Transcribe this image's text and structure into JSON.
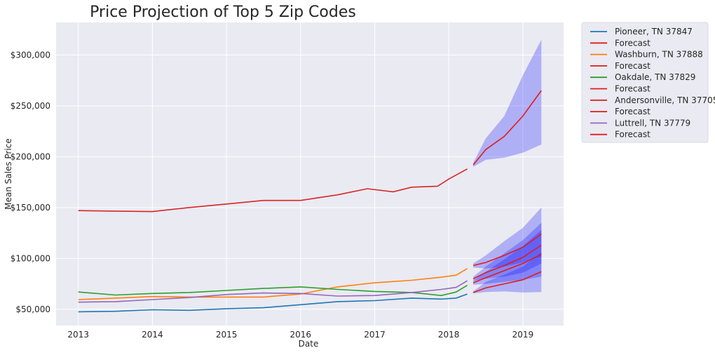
{
  "chart_data": {
    "type": "line",
    "title": "Price Projection of Top 5 Zip Codes",
    "xlabel": "Date",
    "ylabel": "Mean Sales Price",
    "xlim": [
      2012.7,
      2019.55
    ],
    "ylim": [
      34000,
      332000
    ],
    "x_ticks": [
      {
        "value": 2013,
        "label": "2013"
      },
      {
        "value": 2014,
        "label": "2014"
      },
      {
        "value": 2015,
        "label": "2015"
      },
      {
        "value": 2016,
        "label": "2016"
      },
      {
        "value": 2017,
        "label": "2017"
      },
      {
        "value": 2018,
        "label": "2018"
      },
      {
        "value": 2019,
        "label": "2019"
      }
    ],
    "y_ticks": [
      {
        "value": 50000,
        "label": "$50,000"
      },
      {
        "value": 100000,
        "label": "$100,000"
      },
      {
        "value": 150000,
        "label": "$150,000"
      },
      {
        "value": 200000,
        "label": "$200,000"
      },
      {
        "value": 250000,
        "label": "$250,000"
      },
      {
        "value": 300000,
        "label": "$300,000"
      }
    ],
    "grid": true,
    "legend_position": "outside-right",
    "colors": {
      "background": "#eaeaf2",
      "grid": "#ffffff",
      "forecast_line": "#e31a1c",
      "confidence_band": "#0000ff"
    },
    "legend": [
      {
        "label": "Pioneer, TN 37847",
        "color": "#1f77b4"
      },
      {
        "label": "Forecast",
        "color": "#e31a1c"
      },
      {
        "label": "Washburn, TN 37888",
        "color": "#ff7f0e"
      },
      {
        "label": "Forecast",
        "color": "#e31a1c"
      },
      {
        "label": "Oakdale, TN 37829",
        "color": "#2ca02c"
      },
      {
        "label": "Forecast",
        "color": "#e31a1c"
      },
      {
        "label": "Andersonville, TN 37705",
        "color": "#d62728"
      },
      {
        "label": "Forecast",
        "color": "#e31a1c"
      },
      {
        "label": "Luttrell, TN 37779",
        "color": "#9467bd"
      },
      {
        "label": "Forecast",
        "color": "#e31a1c"
      }
    ],
    "series": [
      {
        "name": "Pioneer, TN 37847",
        "color": "#1f77b4",
        "x": [
          2013.0,
          2013.5,
          2014.0,
          2014.5,
          2015.0,
          2015.5,
          2016.0,
          2016.5,
          2017.0,
          2017.5,
          2017.9,
          2018.1,
          2018.25
        ],
        "y": [
          47500,
          48000,
          49500,
          49000,
          50500,
          51500,
          54500,
          57500,
          58500,
          61000,
          60000,
          61000,
          65000
        ],
        "forecast": {
          "x": [
            2018.33,
            2018.5,
            2018.75,
            2019.0,
            2019.25
          ],
          "y": [
            66500,
            71000,
            75000,
            79000,
            87000
          ],
          "lower": [
            65500,
            67000,
            67500,
            66500,
            67000
          ],
          "upper": [
            67500,
            77000,
            84000,
            92000,
            106000
          ]
        }
      },
      {
        "name": "Washburn, TN 37888",
        "color": "#ff7f0e",
        "x": [
          2013.0,
          2013.5,
          2014.0,
          2014.5,
          2015.0,
          2015.5,
          2016.0,
          2016.5,
          2017.0,
          2017.5,
          2017.9,
          2018.1,
          2018.25
        ],
        "y": [
          59500,
          61000,
          62500,
          62000,
          62000,
          62000,
          65000,
          72000,
          76000,
          78500,
          81500,
          83500,
          90000
        ],
        "forecast": {
          "x": [
            2018.33,
            2018.5,
            2018.75,
            2019.0,
            2019.25
          ],
          "y": [
            76000,
            81000,
            88000,
            95000,
            104000
          ],
          "lower": [
            74000,
            75000,
            77000,
            79000,
            82000
          ],
          "upper": [
            78000,
            87000,
            99000,
            112000,
            128000
          ]
        }
      },
      {
        "name": "Oakdale, TN 37829",
        "color": "#2ca02c",
        "x": [
          2013.0,
          2013.5,
          2014.0,
          2014.5,
          2015.0,
          2015.5,
          2016.0,
          2016.5,
          2017.0,
          2017.5,
          2017.9,
          2018.1,
          2018.25
        ],
        "y": [
          67000,
          64000,
          65500,
          66500,
          68500,
          70500,
          72000,
          69500,
          67500,
          66500,
          63500,
          67000,
          73500
        ],
        "forecast": {
          "x": [
            2018.33,
            2018.5,
            2018.75,
            2019.0,
            2019.25
          ],
          "y": [
            80000,
            86000,
            93000,
            101000,
            113000
          ],
          "lower": [
            78000,
            80000,
            82000,
            86000,
            95000
          ],
          "upper": [
            82000,
            92000,
            105000,
            118000,
            135000
          ]
        }
      },
      {
        "name": "Andersonville, TN 37705",
        "color": "#d62728",
        "x": [
          2013.0,
          2013.5,
          2014.0,
          2014.5,
          2015.0,
          2015.5,
          2016.0,
          2016.5,
          2016.9,
          2017.25,
          2017.5,
          2017.85,
          2018.0,
          2018.25
        ],
        "y": [
          147000,
          146500,
          146000,
          150000,
          153500,
          157000,
          157000,
          162500,
          168500,
          165500,
          170000,
          171000,
          178000,
          188000
        ],
        "forecast": {
          "x": [
            2018.33,
            2018.5,
            2018.75,
            2019.0,
            2019.25
          ],
          "y": [
            192000,
            207000,
            220000,
            240000,
            265000
          ],
          "lower": [
            190000,
            197000,
            199000,
            204000,
            212000
          ],
          "upper": [
            194000,
            218000,
            240000,
            280000,
            315000
          ]
        }
      },
      {
        "name": "Luttrell, TN 37779",
        "color": "#9467bd",
        "x": [
          2013.0,
          2013.5,
          2014.0,
          2014.5,
          2015.0,
          2015.5,
          2016.0,
          2016.5,
          2017.0,
          2017.5,
          2017.9,
          2018.1,
          2018.25
        ],
        "y": [
          57000,
          57500,
          59500,
          61500,
          64500,
          66000,
          65500,
          63000,
          63500,
          66500,
          69500,
          71500,
          78000
        ],
        "forecast": {
          "x": [
            2018.33,
            2018.5,
            2018.75,
            2019.0,
            2019.25
          ],
          "y": [
            93000,
            96000,
            103000,
            111000,
            124000
          ],
          "lower": [
            91000,
            90000,
            92000,
            96000,
            102000
          ],
          "upper": [
            95000,
            103000,
            117000,
            130000,
            150000
          ]
        }
      }
    ]
  }
}
